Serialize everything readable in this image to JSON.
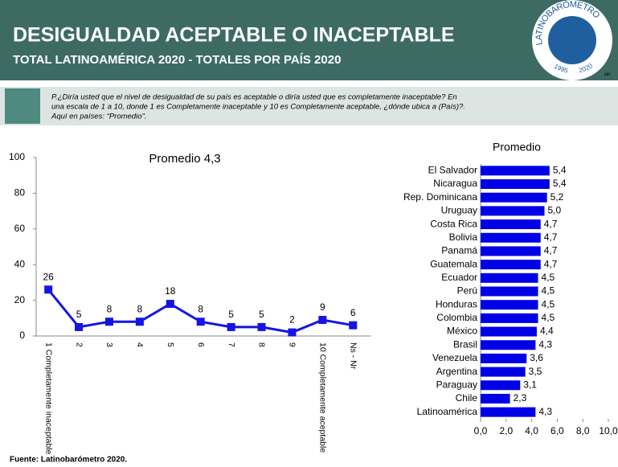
{
  "header": {
    "title": "DESIGUALDAD ACEPTABLE O INACEPTABLE",
    "subtitle": "TOTAL LATINOAMÉRICA  2020 - TOTALES POR PAÍS 2020",
    "logo": {
      "name": "LATINOBARÓMETRO",
      "start": "1995",
      "end": "2020",
      "mark": "MR"
    }
  },
  "question": [
    "P.¿Diría usted que el nivel de desigualdad de su país es aceptable o diría usted que es completamente inaceptable? En",
    "una escala de 1 a 10, donde 1 es Completamente inaceptable y 10 es Completamente aceptable, ¿dónde ubica a (País)?.",
    "Aquí en países: “Promedio”."
  ],
  "source": "Fuente: Latinobarómetro 2020.",
  "chart_data": [
    {
      "type": "line",
      "title": "Promedio 4,3",
      "color": "#1414e6",
      "categories": [
        "1 Completamente inaceptable",
        "2",
        "3",
        "4",
        "5",
        "6",
        "7",
        "8",
        "9",
        "10 Completamente aceptable",
        "Ns - Nr"
      ],
      "values": [
        26,
        5,
        8,
        8,
        18,
        8,
        5,
        5,
        2,
        9,
        6
      ],
      "ylim": [
        0,
        100
      ],
      "yticks": [
        0,
        20,
        40,
        60,
        80,
        100
      ]
    },
    {
      "type": "bar",
      "orientation": "horizontal",
      "title": "Promedio",
      "color": "#0000e6",
      "categories": [
        "El Salvador",
        "Nicaragua",
        "Rep. Dominicana",
        "Uruguay",
        "Costa Rica",
        "Bolivia",
        "Panamá",
        "Guatemala",
        "Ecuador",
        "Perú",
        "Honduras",
        "Colombia",
        "México",
        "Brasil",
        "Venezuela",
        "Argentina",
        "Paraguay",
        "Chile",
        "Latinoamérica"
      ],
      "values": [
        5.4,
        5.4,
        5.2,
        5.0,
        4.7,
        4.7,
        4.7,
        4.7,
        4.5,
        4.5,
        4.5,
        4.5,
        4.4,
        4.3,
        3.6,
        3.5,
        3.1,
        2.3,
        4.3
      ],
      "value_labels": [
        "5,4",
        "5,4",
        "5,2",
        "5,0",
        "4,7",
        "4,7",
        "4,7",
        "4,7",
        "4,5",
        "4,5",
        "4,5",
        "4,5",
        "4,4",
        "4,3",
        "3,6",
        "3,5",
        "3,1",
        "2,3",
        "4,3"
      ],
      "xlim": [
        0,
        10
      ],
      "xticks": [
        {
          "value": 0,
          "label": "0,0"
        },
        {
          "value": 2,
          "label": "2,0"
        },
        {
          "value": 4,
          "label": "4,0"
        },
        {
          "value": 6,
          "label": "6,0"
        },
        {
          "value": 8,
          "label": "8,0"
        },
        {
          "value": 10,
          "label": "10,0"
        }
      ]
    }
  ]
}
